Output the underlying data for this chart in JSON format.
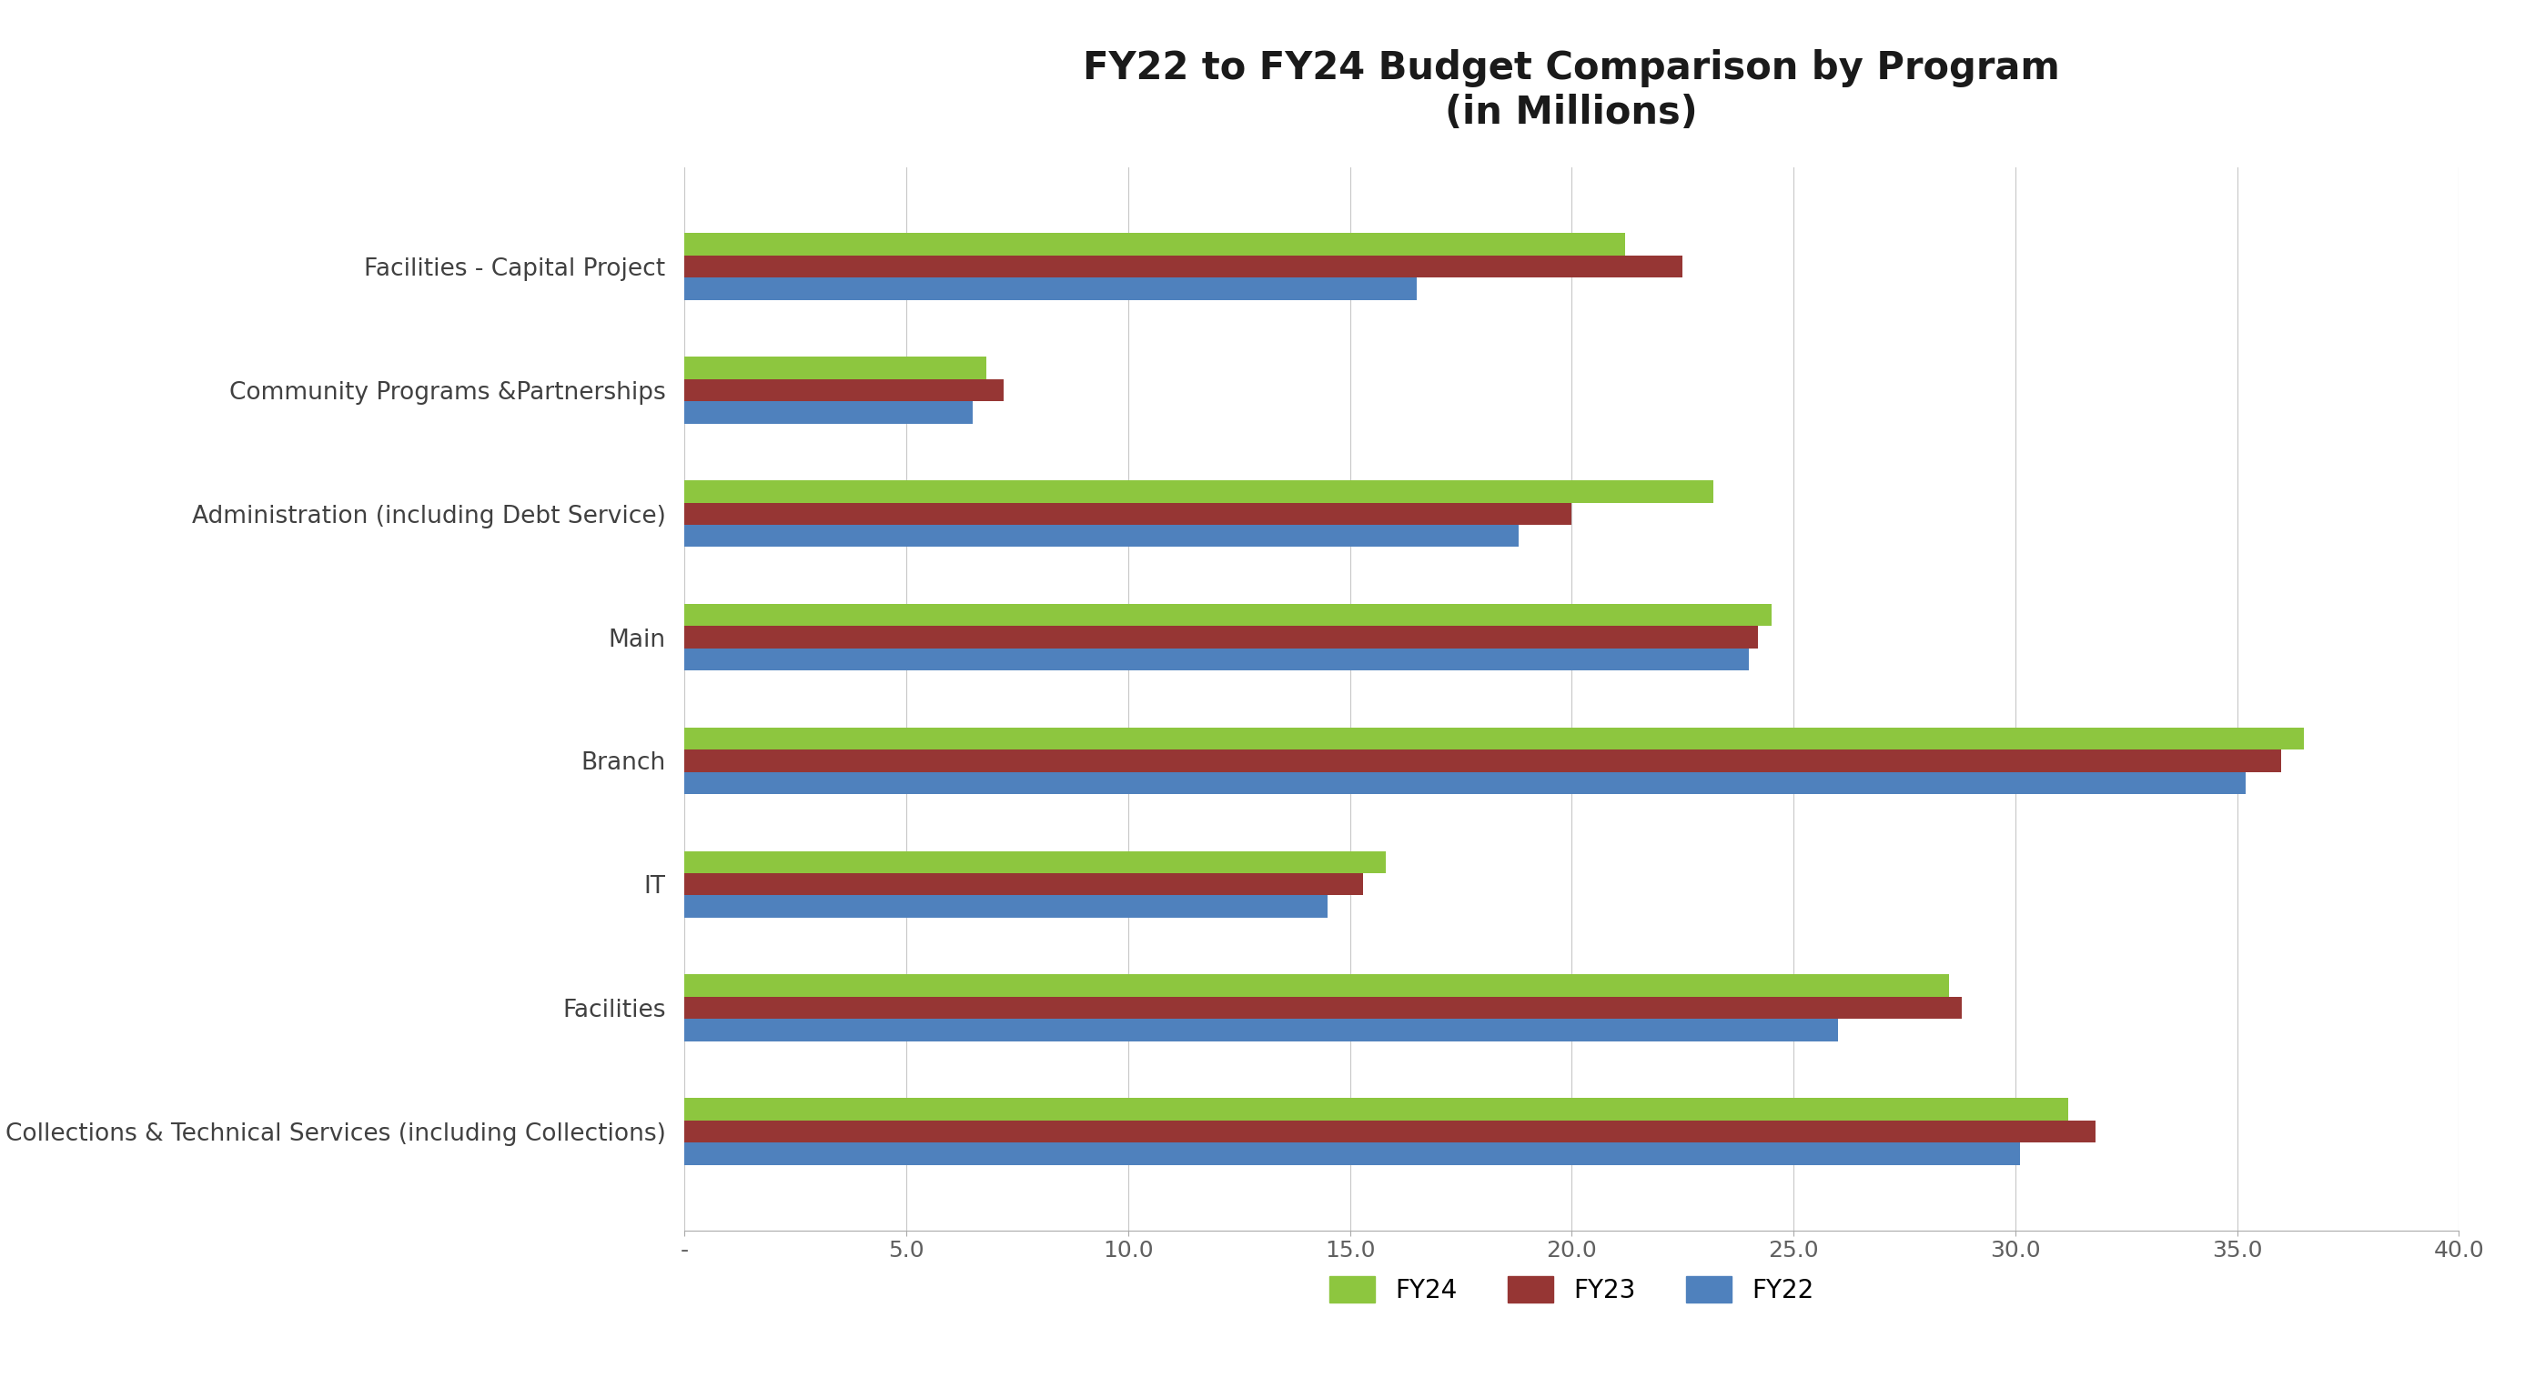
{
  "title": "FY22 to FY24 Budget Comparison by Program\n(in Millions)",
  "categories": [
    "Collections & Technical Services (including Collections)",
    "Facilities",
    "IT",
    "Branch",
    "Main",
    "Administration (including Debt Service)",
    "Community Programs &Partnerships",
    "Facilities - Capital Project"
  ],
  "series": {
    "FY24": [
      31.2,
      28.5,
      15.8,
      36.5,
      24.5,
      23.2,
      6.8,
      21.2
    ],
    "FY23": [
      31.8,
      28.8,
      15.3,
      36.0,
      24.2,
      20.0,
      7.2,
      22.5
    ],
    "FY22": [
      30.1,
      26.0,
      14.5,
      35.2,
      24.0,
      18.8,
      6.5,
      16.5
    ]
  },
  "colors": {
    "FY24": "#8DC63F",
    "FY23": "#963634",
    "FY22": "#4F81BD"
  },
  "xlim": [
    0,
    40.0
  ],
  "xticks": [
    0,
    5.0,
    10.0,
    15.0,
    20.0,
    25.0,
    30.0,
    35.0,
    40.0
  ],
  "xtick_labels": [
    "-",
    "5.0",
    "10.0",
    "15.0",
    "20.0",
    "25.0",
    "30.0",
    "35.0",
    "40.0"
  ],
  "background_color": "#FFFFFF",
  "grid_color": "#C8C8C8",
  "bar_height": 0.18,
  "title_fontsize": 30,
  "label_fontsize": 19,
  "tick_fontsize": 18,
  "legend_fontsize": 20
}
